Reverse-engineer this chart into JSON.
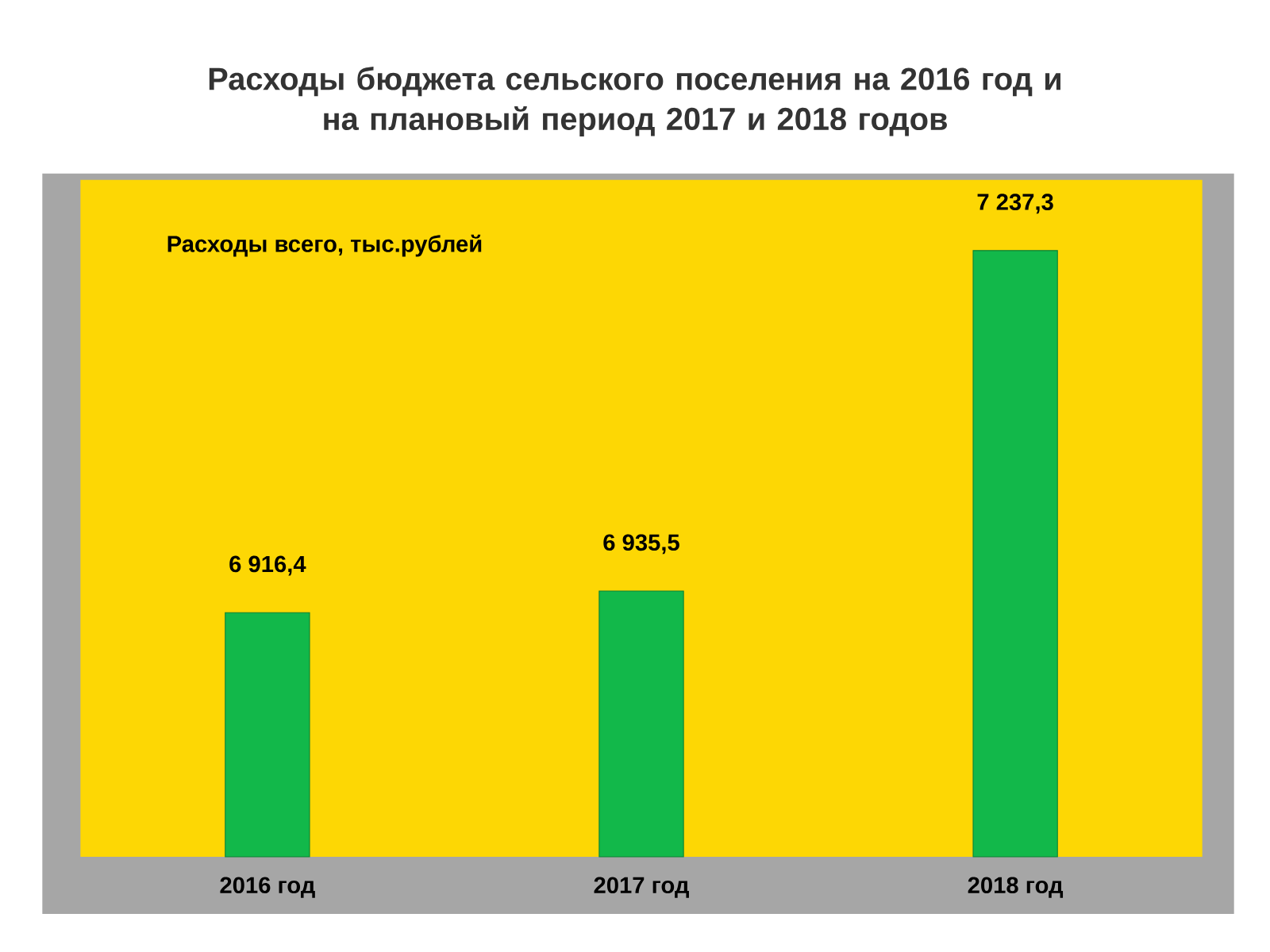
{
  "chart_data": {
    "type": "bar",
    "title": "Расходы бюджета сельского поселения на 2016 год и\nна плановый период 2017 и 2018 годов",
    "categories": [
      "2016 год",
      "2017 год",
      "2018 год"
    ],
    "values": [
      6916.4,
      6935.5,
      7237.3
    ],
    "value_labels": [
      "6 916,4",
      "6 935,5",
      "7 237,3"
    ],
    "color": "#12b84a",
    "ylim": [
      6700,
      7300
    ],
    "tick_labels": "x",
    "annotations": [
      "Расходы всего, тыс.рублей"
    ]
  }
}
